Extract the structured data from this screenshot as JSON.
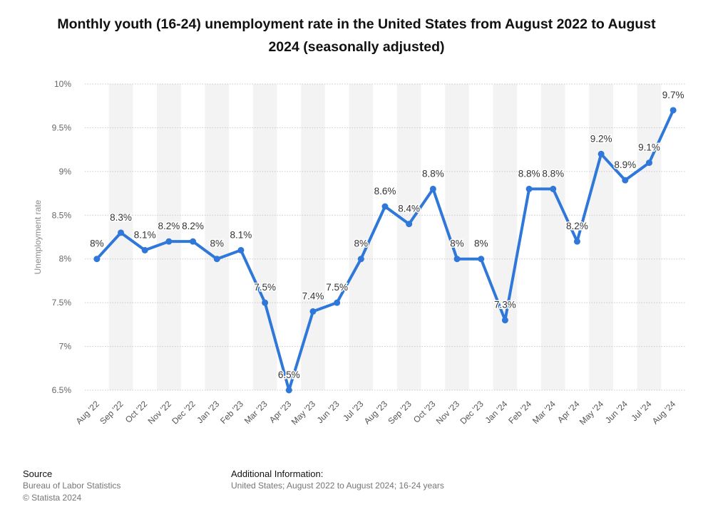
{
  "title": "Monthly youth (16-24) unemployment rate in the United States from August 2022 to August 2024 (seasonally adjusted)",
  "footer": {
    "source_heading": "Source",
    "source_name": "Bureau of Labor Statistics",
    "copyright": "© Statista 2024",
    "info_heading": "Additional Information:",
    "info_text": "United States; August 2022 to August 2024; 16-24 years"
  },
  "colors": {
    "line": "#2f78d9",
    "band": "#f3f3f3",
    "grid": "#c9c9c9"
  },
  "chart_data": {
    "type": "line",
    "ylabel": "Unemployment rate",
    "xlabel": "",
    "ylim": [
      6.5,
      10
    ],
    "y_ticks": [
      {
        "value": 6.5,
        "label": "6.5%"
      },
      {
        "value": 7,
        "label": "7%"
      },
      {
        "value": 7.5,
        "label": "7.5%"
      },
      {
        "value": 8,
        "label": "8%"
      },
      {
        "value": 8.5,
        "label": "8.5%"
      },
      {
        "value": 9,
        "label": "9%"
      },
      {
        "value": 9.5,
        "label": "9.5%"
      },
      {
        "value": 10,
        "label": "10%"
      }
    ],
    "grid": true,
    "categories": [
      "Aug '22",
      "Sep '22",
      "Oct '22",
      "Nov '22",
      "Dec '22",
      "Jan '23",
      "Feb '23",
      "Mar '23",
      "Apr '23",
      "May '23",
      "Jun '23",
      "Jul '23",
      "Aug '23",
      "Sep '23",
      "Oct '23",
      "Nov '23",
      "Dec '23",
      "Jan '24",
      "Feb '24",
      "Mar '24",
      "Apr '24",
      "May '24",
      "Jun '24",
      "Jul '24",
      "Aug '24"
    ],
    "values": [
      8,
      8.3,
      8.1,
      8.2,
      8.2,
      8,
      8.1,
      7.5,
      6.5,
      7.4,
      7.5,
      8,
      8.6,
      8.4,
      8.8,
      8,
      8,
      7.3,
      8.8,
      8.8,
      8.2,
      9.2,
      8.9,
      9.1,
      9.7
    ],
    "data_labels": [
      "8%",
      "8.3%",
      "8.1%",
      "8.2%",
      "8.2%",
      "8%",
      "8.1%",
      "7.5%",
      "6.5%",
      "7.4%",
      "7.5%",
      "8%",
      "8.6%",
      "8.4%",
      "8.8%",
      "8%",
      "8%",
      "7.3%",
      "8.8%",
      "8.8%",
      "8.2%",
      "9.2%",
      "8.9%",
      "9.1%",
      "9.7%"
    ]
  }
}
